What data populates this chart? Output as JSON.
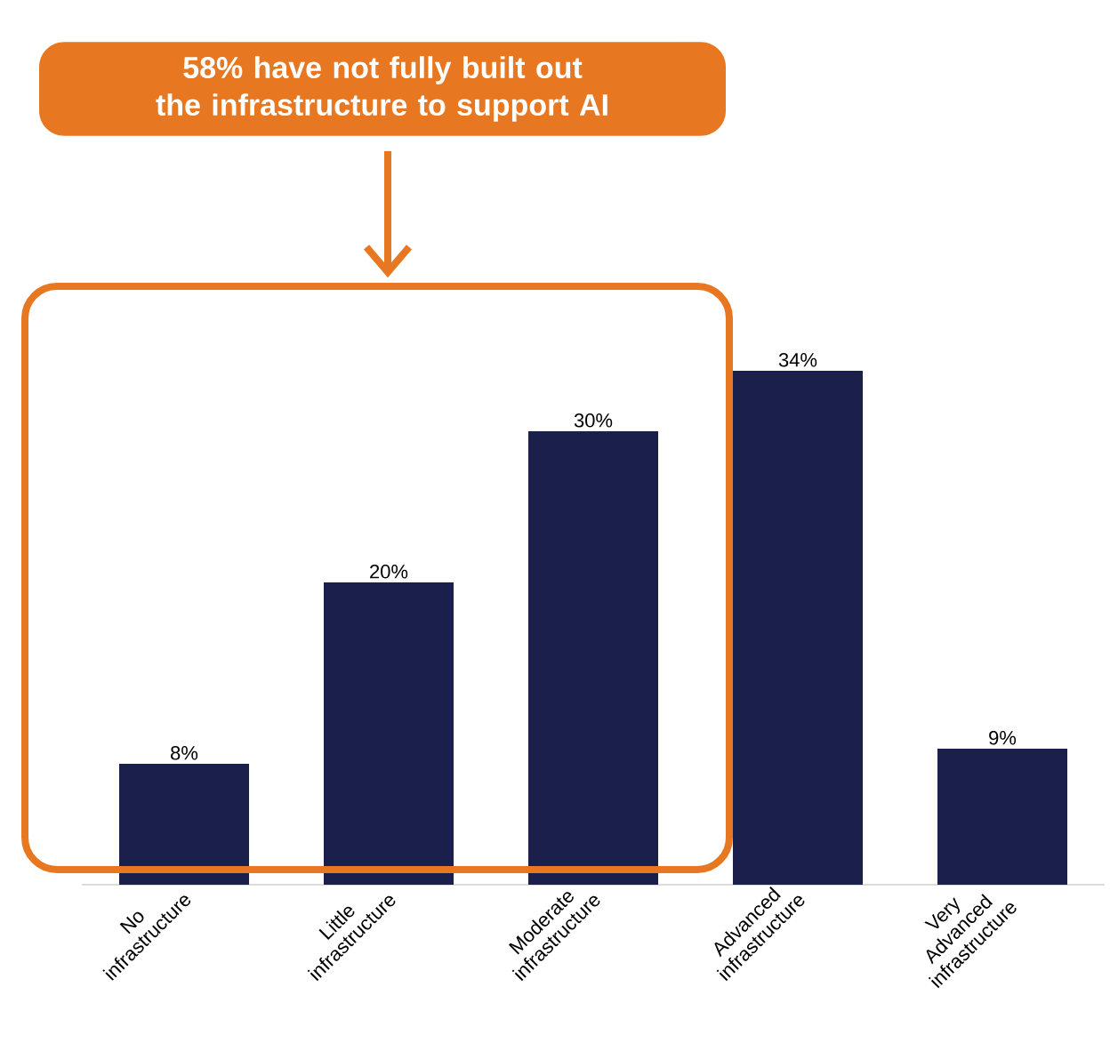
{
  "chart_data": {
    "type": "bar",
    "categories": [
      "No infrastructure",
      "Little infrastructure",
      "Moderate infrastructure",
      "Advanced infrastructure",
      "Very Advanced infrastructure"
    ],
    "values": [
      8,
      20,
      30,
      34,
      9
    ],
    "value_labels": [
      "8%",
      "20%",
      "30%",
      "34%",
      "9%"
    ],
    "color": "#1b1f4b",
    "annotations": [
      "58% have not fully built out the infrastructure to support AI"
    ]
  }
}
